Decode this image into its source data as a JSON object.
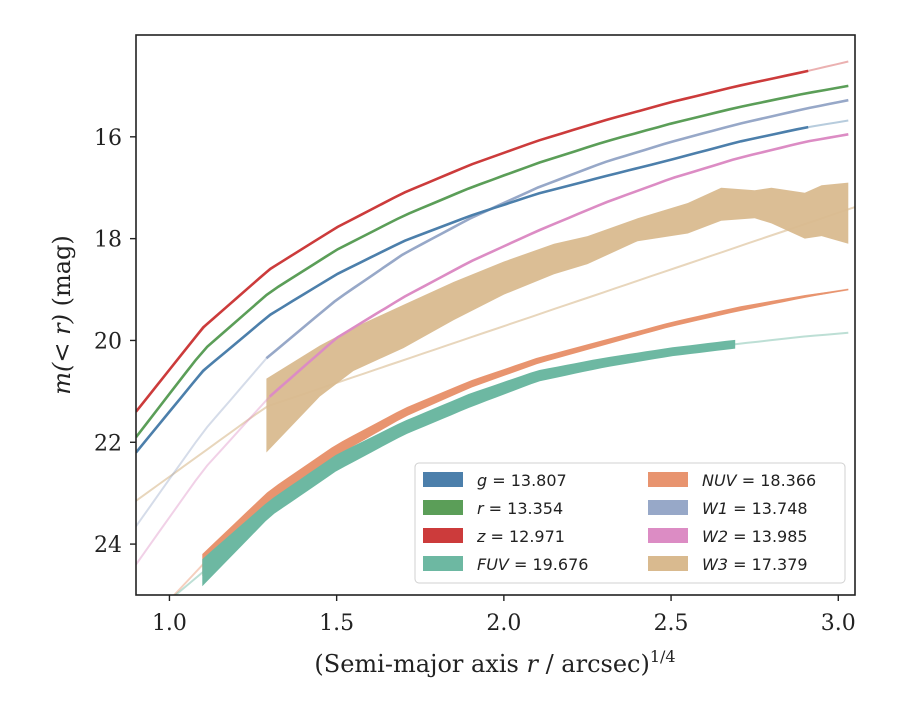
{
  "chart_data": {
    "type": "line",
    "xlabel": "(Semi-major axis r / arcsec)",
    "xlabel_parts": {
      "pre": "(Semi-major axis ",
      "var": "r",
      "post": " / arcsec)",
      "sup": "1/4"
    },
    "ylabel": "m(< r) (mag)",
    "ylabel_parts": {
      "func": "m",
      "arg": "(< r)",
      "unit": " (mag)"
    },
    "xlim": [
      0.9,
      3.05
    ],
    "ylim": [
      25.0,
      14.0
    ],
    "y_inverted": true,
    "xticks": [
      1.0,
      1.5,
      2.0,
      2.5,
      3.0
    ],
    "xtick_labels": [
      "1.0",
      "1.5",
      "2.0",
      "2.5",
      "3.0"
    ],
    "yticks": [
      16,
      18,
      20,
      22,
      24
    ],
    "ytick_labels": [
      "16",
      "18",
      "20",
      "22",
      "24"
    ],
    "grid": false,
    "legend_position": "lower-right",
    "legend_columns": 2,
    "series": [
      {
        "name": "g",
        "legend_label": "g = 13.807",
        "color": "#4c7fab",
        "kind": "line",
        "x": [
          0.9,
          1.1,
          1.3,
          1.5,
          1.7,
          1.9,
          2.1,
          2.3,
          2.5,
          2.7,
          2.9,
          3.03
        ],
        "y": [
          22.2,
          20.6,
          19.5,
          18.7,
          18.05,
          17.55,
          17.12,
          16.78,
          16.45,
          16.1,
          15.82,
          15.68
        ],
        "solid_from": 0.9,
        "solid_to": 2.91
      },
      {
        "name": "r",
        "legend_label": "r = 13.354",
        "color": "#5b9e58",
        "kind": "line",
        "x": [
          0.9,
          1.1,
          1.3,
          1.5,
          1.7,
          1.9,
          2.1,
          2.3,
          2.5,
          2.7,
          2.9,
          3.03
        ],
        "y": [
          21.9,
          20.2,
          19.05,
          18.22,
          17.55,
          17.0,
          16.52,
          16.1,
          15.74,
          15.42,
          15.15,
          15.0
        ],
        "solid_from": 0.9,
        "solid_to": 3.03
      },
      {
        "name": "z",
        "legend_label": "z = 12.971",
        "color": "#cc3b3b",
        "kind": "line",
        "x": [
          0.9,
          1.1,
          1.3,
          1.5,
          1.7,
          1.9,
          2.1,
          2.3,
          2.5,
          2.7,
          2.9,
          3.03
        ],
        "y": [
          21.4,
          19.75,
          18.6,
          17.78,
          17.1,
          16.55,
          16.08,
          15.68,
          15.32,
          15.0,
          14.72,
          14.52
        ],
        "solid_from": 0.9,
        "solid_to": 2.91
      },
      {
        "name": "FUV",
        "legend_label": "FUV = 19.676",
        "color": "#6db8a2",
        "kind": "band",
        "x": [
          1.0,
          1.1,
          1.3,
          1.5,
          1.7,
          1.9,
          2.1,
          2.3,
          2.5,
          2.69,
          2.9,
          3.03
        ],
        "y_upper": [
          25.1,
          24.3,
          23.15,
          22.25,
          21.6,
          21.05,
          20.6,
          20.35,
          20.15,
          20.0,
          19.92,
          19.85
        ],
        "y_lower": [
          25.1,
          24.8,
          23.45,
          22.55,
          21.85,
          21.3,
          20.8,
          20.52,
          20.3,
          20.15,
          19.92,
          19.85
        ],
        "solid_from": 1.1,
        "solid_to": 2.69
      },
      {
        "name": "NUV",
        "legend_label": "NUV = 18.366",
        "color": "#e8946f",
        "kind": "band",
        "x": [
          1.0,
          1.1,
          1.3,
          1.5,
          1.7,
          1.9,
          2.1,
          2.3,
          2.5,
          2.7,
          2.9,
          3.03
        ],
        "y_upper": [
          25.1,
          24.2,
          22.95,
          22.05,
          21.35,
          20.8,
          20.35,
          20.0,
          19.65,
          19.35,
          19.12,
          19.0
        ],
        "y_lower": [
          25.1,
          24.6,
          23.15,
          22.25,
          21.5,
          20.92,
          20.45,
          20.08,
          19.72,
          19.42,
          19.15,
          19.0
        ],
        "solid_from": 1.1,
        "solid_to": 3.03
      },
      {
        "name": "W1",
        "legend_label": "W1 = 13.748",
        "color": "#97a8c8",
        "kind": "line",
        "x": [
          0.9,
          1.1,
          1.29,
          1.5,
          1.7,
          1.9,
          2.1,
          2.3,
          2.5,
          2.7,
          2.9,
          3.03
        ],
        "y": [
          23.65,
          21.8,
          20.35,
          19.2,
          18.3,
          17.6,
          17.0,
          16.5,
          16.1,
          15.75,
          15.45,
          15.28
        ],
        "solid_from": 1.29,
        "solid_to": 3.03
      },
      {
        "name": "W2",
        "legend_label": "W2 = 13.985",
        "color": "#dc8cc4",
        "kind": "line",
        "x": [
          0.9,
          1.1,
          1.3,
          1.5,
          1.7,
          1.9,
          2.1,
          2.3,
          2.5,
          2.7,
          2.9,
          3.03
        ],
        "y": [
          24.4,
          22.55,
          21.1,
          19.95,
          19.15,
          18.45,
          17.85,
          17.3,
          16.82,
          16.42,
          16.1,
          15.95
        ],
        "solid_from": 1.3,
        "solid_to": 3.03
      },
      {
        "name": "W3",
        "legend_label": "W3 = 17.379",
        "color": "#d9ba8f",
        "kind": "band",
        "x": [
          1.29,
          1.45,
          1.55,
          1.7,
          1.85,
          2.0,
          2.15,
          2.25,
          2.4,
          2.55,
          2.65,
          2.75,
          2.8,
          2.9,
          2.95,
          3.03
        ],
        "y_upper": [
          20.75,
          20.1,
          19.75,
          19.3,
          18.85,
          18.45,
          18.1,
          17.95,
          17.6,
          17.3,
          17.0,
          17.05,
          17.0,
          17.1,
          16.95,
          16.9
        ],
        "y_lower": [
          22.2,
          21.1,
          20.6,
          20.15,
          19.6,
          19.1,
          18.7,
          18.5,
          18.05,
          17.9,
          17.65,
          17.6,
          17.7,
          18.0,
          17.95,
          18.1
        ],
        "ext_x": [
          0.9,
          1.29,
          3.05
        ],
        "ext_y": [
          23.15,
          21.3,
          17.38
        ]
      }
    ],
    "legend": {
      "col1": [
        {
          "label_var": "g",
          "label_val": " = 13.807",
          "color": "#4c7fab"
        },
        {
          "label_var": "r",
          "label_val": " = 13.354",
          "color": "#5b9e58"
        },
        {
          "label_var": "z",
          "label_val": " = 12.971",
          "color": "#cc3b3b"
        },
        {
          "label_var": "FUV",
          "label_val": " = 19.676",
          "color": "#6db8a2"
        }
      ],
      "col2": [
        {
          "label_var": "NUV",
          "label_val": " = 18.366",
          "color": "#e8946f"
        },
        {
          "label_var": "W1",
          "label_val": " = 13.748",
          "color": "#97a8c8"
        },
        {
          "label_var": "W2",
          "label_val": " = 13.985",
          "color": "#dc8cc4"
        },
        {
          "label_var": "W3",
          "label_val": " = 17.379",
          "color": "#d9ba8f"
        }
      ]
    }
  }
}
